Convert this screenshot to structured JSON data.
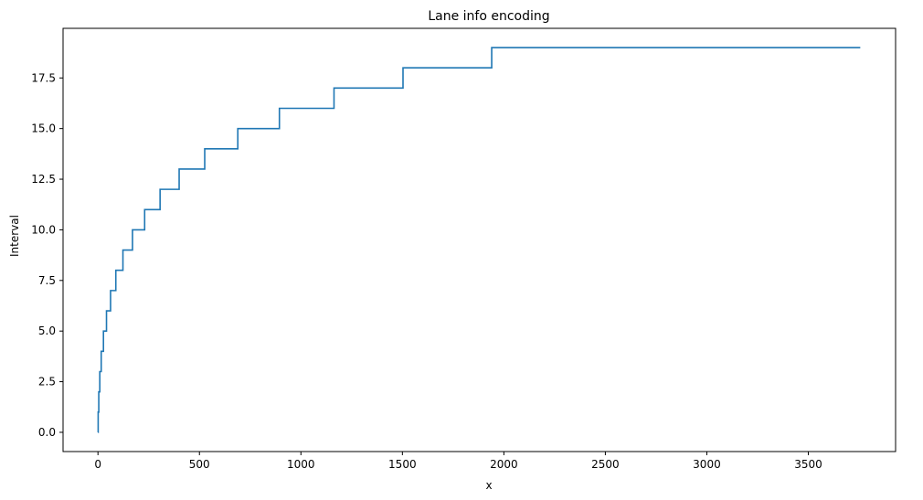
{
  "chart_data": {
    "type": "line",
    "title": "Lane info encoding",
    "xlabel": "x",
    "ylabel": "Interval",
    "xlim": [
      -172,
      3930
    ],
    "ylim": [
      -0.95,
      19.95
    ],
    "grid": false,
    "xticks": [
      0,
      500,
      1000,
      1500,
      2000,
      2500,
      3000,
      3500
    ],
    "yticks": [
      0.0,
      2.5,
      5.0,
      7.5,
      10.0,
      12.5,
      15.0,
      17.5
    ],
    "xtick_labels": [
      "0",
      "500",
      "1000",
      "1500",
      "2000",
      "2500",
      "3000",
      "3500"
    ],
    "ytick_labels": [
      "0.0",
      "2.5",
      "5.0",
      "7.5",
      "10.0",
      "12.5",
      "15.0",
      "17.5"
    ],
    "series": [
      {
        "color": "#1f77b4",
        "step": "post",
        "x": [
          0,
          1,
          4,
          9,
          16,
          27,
          42,
          62,
          88,
          123,
          170,
          230,
          306,
          400,
          526,
          689,
          894,
          1163,
          1503,
          1940,
          3756
        ],
        "values": [
          0,
          1,
          2,
          3,
          4,
          5,
          6,
          7,
          8,
          9,
          10,
          11,
          12,
          13,
          14,
          15,
          16,
          17,
          18,
          19,
          19
        ]
      }
    ]
  }
}
